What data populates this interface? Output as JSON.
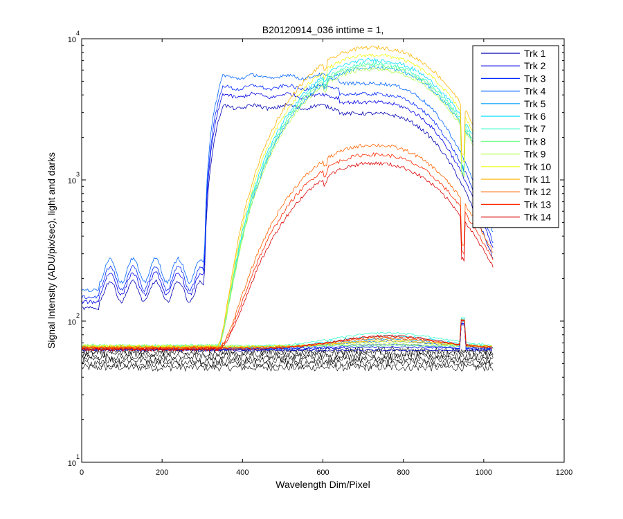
{
  "chart_data": {
    "type": "line",
    "title": "B20120914_036 inttime = 1,",
    "xlabel": "Wavelength Dim/Pixel",
    "ylabel": "Signal Intensity (ADU/pix/sec), light and darks",
    "xlim": [
      0,
      1200
    ],
    "ylim_log10": [
      1,
      4
    ],
    "yscale": "log",
    "grid": false,
    "legend_position": "top-right",
    "x_ticks": [
      "0",
      "200",
      "400",
      "600",
      "800",
      "1000",
      "1200"
    ],
    "x_tick_values": [
      0,
      200,
      400,
      600,
      800,
      1000,
      1200
    ],
    "y_ticks": [
      {
        "value": 10,
        "base": "10",
        "exp": "1"
      },
      {
        "value": 100,
        "base": "10",
        "exp": "2"
      },
      {
        "value": 1000,
        "base": "10",
        "exp": "3"
      },
      {
        "value": 10000,
        "base": "10",
        "exp": "4"
      }
    ],
    "series": [
      {
        "name": "Trk 1",
        "color": "#0000b4",
        "peak": 3400,
        "profile": "short",
        "dark": 62
      },
      {
        "name": "Trk 2",
        "color": "#0000e6",
        "peak": 4100,
        "profile": "short",
        "dark": 63
      },
      {
        "name": "Trk 3",
        "color": "#0028ff",
        "peak": 4700,
        "profile": "short",
        "dark": 63
      },
      {
        "name": "Trk 4",
        "color": "#0064ff",
        "peak": 5600,
        "profile": "short",
        "dark": 64
      },
      {
        "name": "Trk 5",
        "color": "#00a0ff",
        "peak": 6200,
        "profile": "long",
        "dark": 64
      },
      {
        "name": "Trk 6",
        "color": "#00dcff",
        "peak": 7000,
        "profile": "long",
        "dark": 65
      },
      {
        "name": "Trk 7",
        "color": "#32ffc8",
        "peak": 6600,
        "profile": "long",
        "dark": 66
      },
      {
        "name": "Trk 8",
        "color": "#78ff8c",
        "peak": 6400,
        "profile": "long",
        "dark": 67
      },
      {
        "name": "Trk 9",
        "color": "#b4ff50",
        "peak": 6000,
        "profile": "long",
        "dark": 66
      },
      {
        "name": "Trk 10",
        "color": "#f0ff14",
        "peak": 7600,
        "profile": "long",
        "dark": 66
      },
      {
        "name": "Trk 11",
        "color": "#ffb400",
        "peak": 8600,
        "profile": "long",
        "dark": 65
      },
      {
        "name": "Trk 12",
        "color": "#ff6400",
        "peak": 1700,
        "profile": "long",
        "dark": 65
      },
      {
        "name": "Trk 13",
        "color": "#ff2800",
        "peak": 1450,
        "profile": "long",
        "dark": 64
      },
      {
        "name": "Trk 14",
        "color": "#dc0000",
        "peak": 1250,
        "profile": "long",
        "dark": 63
      }
    ],
    "darks": {
      "color": "#000000",
      "level_min": 47,
      "level_max": 62,
      "x_range": [
        0,
        1023
      ]
    }
  }
}
